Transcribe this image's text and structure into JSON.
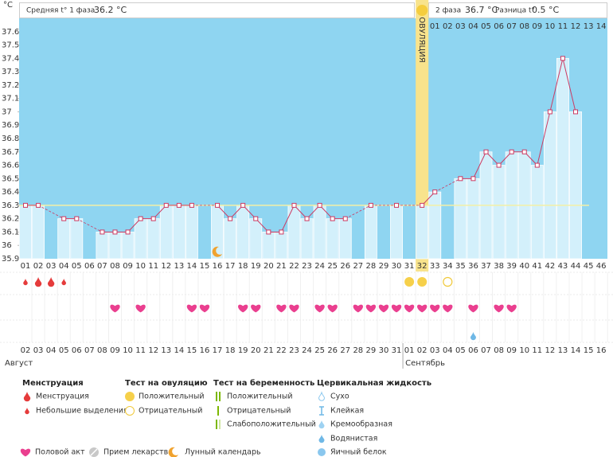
{
  "chart_data": {
    "type": "bar",
    "unit_label": "°C",
    "header": {
      "phase1_label": "Средняя t° 1 фаза",
      "phase1_value": "36.2 °C",
      "phase2_label": "2 фаза",
      "phase2_value": "36.7 °C",
      "diff_label": "Разница t°",
      "diff_value": "0.5 °C"
    },
    "ovulation_label": "ОВУЛЯЦИЯ",
    "ovulation_day": 32,
    "categories": [
      "01",
      "02",
      "03",
      "04",
      "05",
      "06",
      "07",
      "08",
      "09",
      "10",
      "11",
      "12",
      "13",
      "14",
      "15",
      "16",
      "17",
      "18",
      "19",
      "20",
      "21",
      "22",
      "23",
      "24",
      "25",
      "26",
      "27",
      "28",
      "29",
      "30",
      "31",
      "32",
      "33",
      "34",
      "35",
      "36",
      "37",
      "38",
      "39",
      "40",
      "41",
      "42",
      "43",
      "44",
      "45",
      "46"
    ],
    "luteal_days": [
      "01",
      "02",
      "03",
      "04",
      "05",
      "06",
      "07",
      "08",
      "09",
      "10",
      "11",
      "12",
      "13",
      "14"
    ],
    "values": [
      36.3,
      36.3,
      null,
      36.2,
      36.2,
      null,
      36.1,
      36.1,
      36.1,
      36.2,
      36.2,
      36.3,
      36.3,
      36.3,
      null,
      36.3,
      36.2,
      36.3,
      36.2,
      36.1,
      36.1,
      36.3,
      36.2,
      36.3,
      36.2,
      36.2,
      null,
      36.3,
      null,
      36.3,
      null,
      36.3,
      36.4,
      null,
      36.5,
      36.5,
      36.7,
      36.6,
      36.7,
      36.7,
      36.6,
      37.0,
      37.4,
      37.0,
      null,
      null
    ],
    "color": "#d3f0fb",
    "line_color": "#cc3a62",
    "coverline": 36.3,
    "ylim": [
      35.9,
      37.7
    ],
    "yticks": [
      35.9,
      36,
      36.1,
      36.2,
      36.3,
      36.4,
      36.5,
      36.6,
      36.7,
      36.8,
      36.9,
      37,
      37.1,
      37.2,
      37.3,
      37.4,
      37.5,
      37.6
    ],
    "dates": [
      "02",
      "03",
      "04",
      "05",
      "06",
      "07",
      "08",
      "09",
      "10",
      "11",
      "12",
      "13",
      "14",
      "15",
      "16",
      "17",
      "18",
      "19",
      "20",
      "21",
      "22",
      "23",
      "24",
      "25",
      "26",
      "27",
      "28",
      "29",
      "30",
      "31",
      "01",
      "02",
      "03",
      "04",
      "05",
      "06",
      "07",
      "08",
      "09",
      "10",
      "11",
      "12",
      "13",
      "14",
      "15",
      "16"
    ],
    "highlighted_dates": [
      0,
      1,
      2,
      7,
      13,
      14,
      20,
      21,
      27,
      28,
      34,
      35,
      41,
      42
    ],
    "highlight_color": "#e0245e",
    "months": [
      {
        "label": "Август",
        "start": 1
      },
      {
        "label": "Сентябрь",
        "start": 31
      }
    ],
    "menstruation_days": [
      2,
      3
    ],
    "spotting_days": [
      1,
      4
    ],
    "ovulation_positive_days": [
      31,
      32
    ],
    "ovulation_negative_days": [
      34
    ],
    "intercourse_days": [
      8,
      10,
      14,
      15,
      18,
      19,
      21,
      22,
      24,
      25,
      27,
      28,
      29,
      30,
      31,
      32,
      33,
      34,
      36,
      38,
      39
    ],
    "cervical_creamy_days": [
      36
    ],
    "lunar_days": [
      16
    ]
  },
  "legend": {
    "groups": [
      {
        "title": "Менструация",
        "items": [
          "Менструация",
          "Небольшие выделения"
        ]
      },
      {
        "title": "Тест на овуляцию",
        "items": [
          "Положительный",
          "Отрицательный"
        ]
      },
      {
        "title": "Тест на беременность",
        "items": [
          "Положительный",
          "Отрицательный",
          "Слабоположительный"
        ]
      },
      {
        "title": "Цервикальная жидкость",
        "items": [
          "Сухо",
          "Клейкая",
          "Кремообразная",
          "Водянистая",
          "Яичный белок"
        ]
      }
    ],
    "extras": [
      "Половой акт",
      "Прием лекарств",
      "Лунный календарь"
    ]
  }
}
